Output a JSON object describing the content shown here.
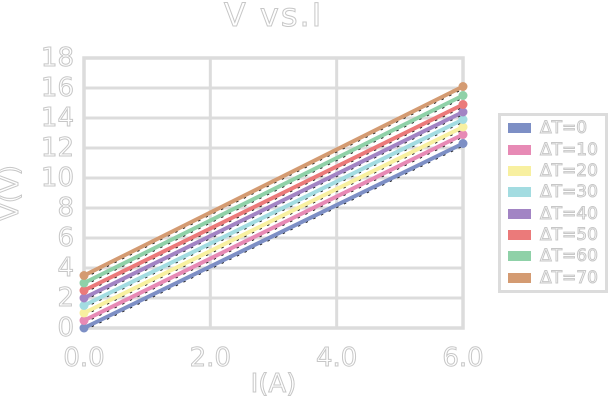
{
  "chart_data": {
    "type": "line",
    "title": "V vs.I",
    "xlabel": "I(A)",
    "ylabel": "V(V)",
    "xlim": [
      0.0,
      6.0
    ],
    "ylim": [
      0,
      18
    ],
    "xticks": [
      0,
      2,
      4,
      6
    ],
    "xtick_labels": [
      "0.0",
      "2.0",
      "4.0",
      "6.0"
    ],
    "yticks": [
      0,
      2,
      4,
      6,
      8,
      10,
      12,
      14,
      16,
      18
    ],
    "ytick_labels": [
      "0",
      "2",
      "4",
      "6",
      "8",
      "10",
      "12",
      "14",
      "16",
      "18"
    ],
    "grid": true,
    "legend_position": "outside-right",
    "series": [
      {
        "name": "ΔT=0",
        "color": "#7d8fc5",
        "x": [
          0,
          6
        ],
        "y": [
          0.0,
          12.3
        ]
      },
      {
        "name": "ΔT=10",
        "color": "#e78ab5",
        "x": [
          0,
          6
        ],
        "y": [
          0.5,
          12.9
        ]
      },
      {
        "name": "ΔT=20",
        "color": "#f8f0a0",
        "x": [
          0,
          6
        ],
        "y": [
          1.0,
          13.4
        ]
      },
      {
        "name": "ΔT=30",
        "color": "#a3dce1",
        "x": [
          0,
          6
        ],
        "y": [
          1.5,
          13.9
        ]
      },
      {
        "name": "ΔT=40",
        "color": "#a284c4",
        "x": [
          0,
          6
        ],
        "y": [
          2.0,
          14.4
        ]
      },
      {
        "name": "ΔT=50",
        "color": "#eb7a7a",
        "x": [
          0,
          6
        ],
        "y": [
          2.5,
          14.9
        ]
      },
      {
        "name": "ΔT=60",
        "color": "#8fd1a8",
        "x": [
          0,
          6
        ],
        "y": [
          3.0,
          15.5
        ]
      },
      {
        "name": "ΔT=70",
        "color": "#d49b72",
        "x": [
          0,
          6
        ],
        "y": [
          3.5,
          16.1
        ]
      }
    ],
    "colors": {
      "grid": "#dcdcdc",
      "text_fill": "#ffffff",
      "text_outline": "#c7c7c7",
      "dash_hint": "#1c1c1c",
      "background": "#ffffff"
    }
  }
}
